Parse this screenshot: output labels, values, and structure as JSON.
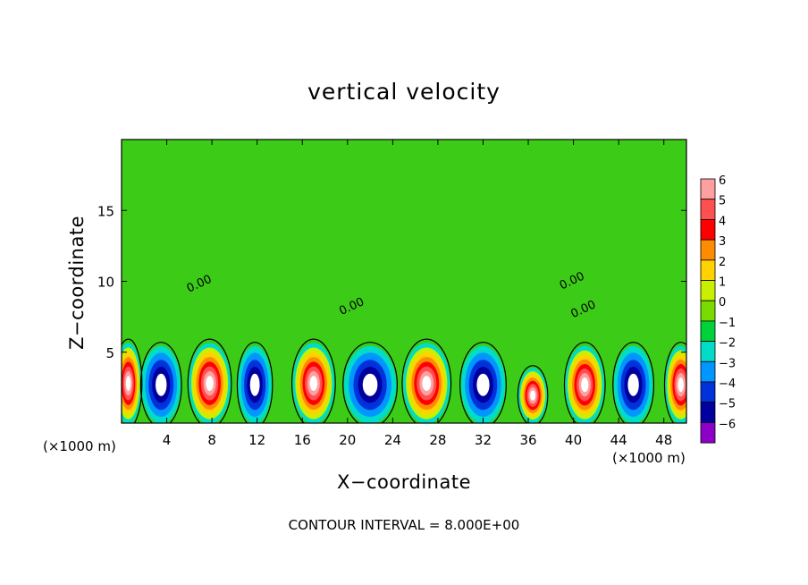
{
  "chart_data": {
    "type": "heatmap",
    "title": "vertical velocity",
    "xlabel": "X−coordinate",
    "ylabel": "Z−coordinate",
    "x_unit_left": "(×1000 m)",
    "x_unit_right": "(×1000 m)",
    "footer": "CONTOUR INTERVAL = 8.000E+00",
    "xlim": [
      0,
      50
    ],
    "ylim": [
      0,
      20
    ],
    "x_ticks": [
      4,
      8,
      12,
      16,
      20,
      24,
      28,
      32,
      36,
      40,
      44,
      48
    ],
    "x_tick_labels": [
      "4",
      "8",
      "12",
      "16",
      "20",
      "24",
      "28",
      "32",
      "36",
      "40",
      "44",
      "48"
    ],
    "y_ticks": [
      5,
      10,
      15
    ],
    "y_tick_labels": [
      "5",
      "10",
      "15"
    ],
    "contour_labels": [
      {
        "text": "0.00",
        "x": 7.0,
        "y": 9.6
      },
      {
        "text": "0.00",
        "x": 20.5,
        "y": 8.0
      },
      {
        "text": "0.00",
        "x": 40.0,
        "y": 9.8
      },
      {
        "text": "0.00",
        "x": 41.0,
        "y": 7.8
      }
    ],
    "colorbar": {
      "levels": [
        6,
        5,
        4,
        3,
        2,
        1,
        0,
        -1,
        -2,
        -3,
        -4,
        -5,
        -6
      ],
      "labels": [
        "6",
        "5",
        "4",
        "3",
        "2",
        "1",
        "0",
        "−1",
        "−2",
        "−3",
        "−4",
        "−5",
        "−6"
      ],
      "colors": [
        "#ffa0a0",
        "#ff5050",
        "#ff0000",
        "#ff8c00",
        "#ffd200",
        "#c8f000",
        "#78dc00",
        "#00d23c",
        "#00dcc8",
        "#0096ff",
        "#0032dc",
        "#0000a0",
        "#8c00c8"
      ]
    },
    "cells": [
      {
        "x": 0.6,
        "sign": 1,
        "amp": 11,
        "w": 1.0,
        "h": 5.2
      },
      {
        "x": 3.5,
        "sign": -1,
        "amp": 9,
        "w": 1.5,
        "h": 5.0
      },
      {
        "x": 7.8,
        "sign": 1,
        "amp": 11,
        "w": 1.6,
        "h": 5.2
      },
      {
        "x": 11.8,
        "sign": -1,
        "amp": 8,
        "w": 1.3,
        "h": 5.0
      },
      {
        "x": 17.0,
        "sign": 1,
        "amp": 11,
        "w": 1.6,
        "h": 5.2
      },
      {
        "x": 22.0,
        "sign": -1,
        "amp": 8,
        "w": 2.0,
        "h": 5.0
      },
      {
        "x": 27.0,
        "sign": 1,
        "amp": 11,
        "w": 1.8,
        "h": 5.2
      },
      {
        "x": 32.0,
        "sign": -1,
        "amp": 9,
        "w": 1.7,
        "h": 5.0
      },
      {
        "x": 36.4,
        "sign": 1,
        "amp": 6,
        "w": 1.1,
        "h": 3.5
      },
      {
        "x": 41.0,
        "sign": 1,
        "amp": 9,
        "w": 1.5,
        "h": 5.0
      },
      {
        "x": 45.3,
        "sign": -1,
        "amp": 9,
        "w": 1.5,
        "h": 5.0
      },
      {
        "x": 49.5,
        "sign": 1,
        "amp": 10,
        "w": 1.2,
        "h": 5.0
      }
    ]
  }
}
